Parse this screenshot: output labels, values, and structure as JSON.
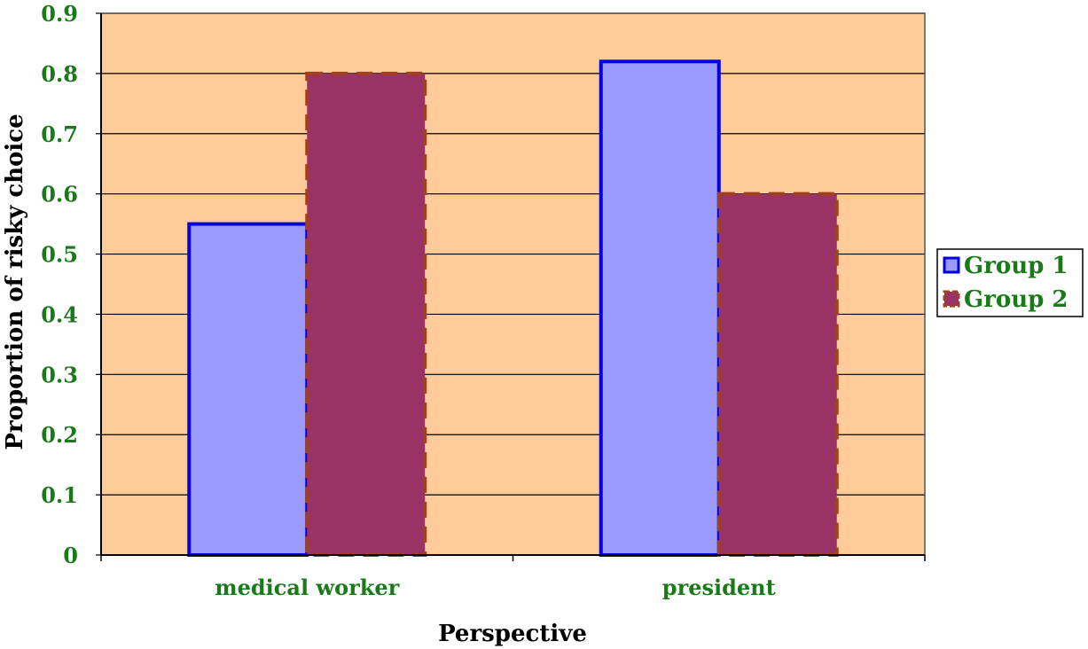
{
  "chart_data": {
    "type": "bar",
    "title": "",
    "xlabel": "Perspective",
    "ylabel": "Proportion of risky choice",
    "categories": [
      "medical worker",
      "president"
    ],
    "series": [
      {
        "name": "Group 1",
        "values": [
          0.55,
          0.82
        ]
      },
      {
        "name": "Group 2",
        "values": [
          0.8,
          0.6
        ]
      }
    ],
    "ylim": [
      0,
      0.9
    ],
    "yticks": [
      "0",
      "0.1",
      "0.2",
      "0.3",
      "0.4",
      "0.5",
      "0.6",
      "0.7",
      "0.8",
      "0.9"
    ],
    "grid": true,
    "legend_position": "right"
  },
  "colors": {
    "plot_background": "#FFCC99",
    "tick_label": "#1A7A1A",
    "group1_fill": "#9999FF",
    "group1_border": "#0000E0",
    "group2_fill": "#993366",
    "group2_border": "#A0401E"
  }
}
